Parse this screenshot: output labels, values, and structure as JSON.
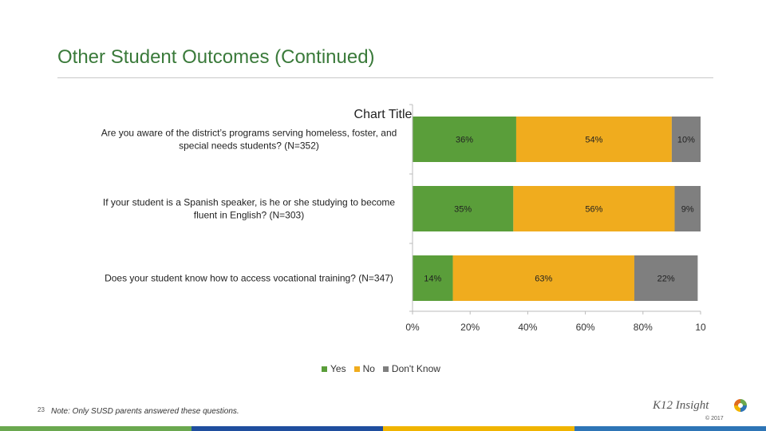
{
  "slide": {
    "title": "Other Student Outcomes (Continued)",
    "page_number": "23",
    "note": "Note: Only SUSD parents answered these questions.",
    "logo_text": "K12 Insight",
    "logo_copyright": "© 2017",
    "footer_colors": [
      "#6aa84f",
      "#1f4e9e",
      "#f0b400",
      "#2e75b6"
    ]
  },
  "chart_data": {
    "type": "bar",
    "orientation": "horizontal",
    "stacked": true,
    "title": "Chart Title",
    "categories": [
      "Are you aware of the district’s programs serving homeless, foster, and special needs students? (N=352)",
      "If your student is a Spanish speaker, is he or she studying to become fluent in English? (N=303)",
      "Does your student know how to access vocational training? (N=347)"
    ],
    "category_lines": [
      [
        "Are you aware of the district’s programs serving homeless, foster, and",
        "special needs students? (N=352)"
      ],
      [
        "If your student is a Spanish speaker, is he or she studying to become",
        "fluent in English? (N=303)"
      ],
      [
        "Does your student know how to access vocational training? (N=347)"
      ]
    ],
    "series": [
      {
        "name": "Yes",
        "color": "#5a9e3a",
        "values": [
          36,
          35,
          14
        ],
        "labels": [
          "36%",
          "35%",
          "14%"
        ]
      },
      {
        "name": "No",
        "color": "#f0ac1e",
        "values": [
          54,
          56,
          63
        ],
        "labels": [
          "54%",
          "56%",
          "63%"
        ]
      },
      {
        "name": "Don't Know",
        "color": "#7f7f7f",
        "values": [
          10,
          9,
          22
        ],
        "labels": [
          "10%",
          "9%",
          "22%"
        ]
      }
    ],
    "xlim": [
      0,
      100
    ],
    "x_ticks": [
      "0%",
      "20%",
      "40%",
      "60%",
      "80%",
      "10"
    ],
    "legend_position": "bottom",
    "grid": false
  }
}
